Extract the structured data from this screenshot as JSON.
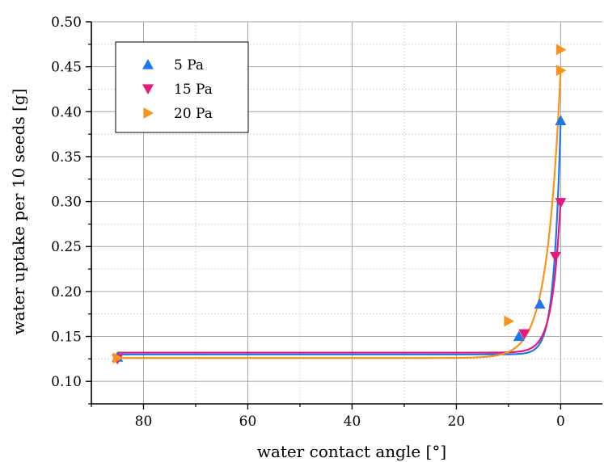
{
  "chart_data": {
    "type": "scatter",
    "title": "",
    "xlabel": "water contact angle [°]",
    "ylabel": "water uptake per 10 seeds [g]",
    "xlim": [
      90,
      -8
    ],
    "ylim": [
      0.075,
      0.5
    ],
    "x_reversed": true,
    "grid": true,
    "legend_placement": "top-left",
    "x_ticks": [
      80,
      60,
      40,
      20,
      0
    ],
    "x_tick_labels": [
      "80",
      "60",
      "40",
      "20",
      "0"
    ],
    "y_ticks": [
      0.1,
      0.15,
      0.2,
      0.25,
      0.3,
      0.35,
      0.4,
      0.45,
      0.5
    ],
    "y_tick_labels": [
      "0.10",
      "0.15",
      "0.20",
      "0.25",
      "0.30",
      "0.35",
      "0.40",
      "0.45",
      "0.50"
    ],
    "series": [
      {
        "name": "5 Pa",
        "color": "#1f77e8",
        "marker": "triangle-up",
        "points": [
          [
            85,
            0.127
          ],
          [
            8,
            0.15
          ],
          [
            4,
            0.186
          ],
          [
            0,
            0.39
          ]
        ],
        "fit": {
          "y0": 0.13,
          "A": 0.26,
          "t": 1.3
        }
      },
      {
        "name": "15 Pa",
        "color": "#e6197a",
        "marker": "triangle-down",
        "points": [
          [
            85,
            0.125
          ],
          [
            7,
            0.153
          ],
          [
            1,
            0.239
          ],
          [
            0,
            0.299
          ]
        ],
        "fit": {
          "y0": 0.132,
          "A": 0.17,
          "t": 1.6
        }
      },
      {
        "name": "20 Pa",
        "color": "#f7941d",
        "marker": "triangle-right",
        "points": [
          [
            85,
            0.126
          ],
          [
            10,
            0.167
          ],
          [
            0,
            0.446
          ],
          [
            0,
            0.469
          ]
        ],
        "fit": {
          "y0": 0.126,
          "A": 0.32,
          "t": 2.6
        }
      }
    ]
  }
}
